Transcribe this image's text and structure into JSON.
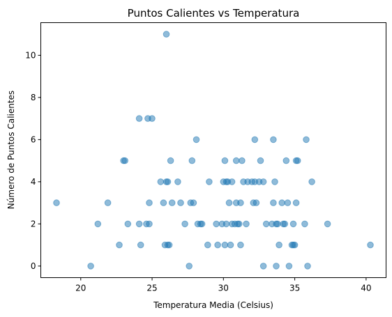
{
  "chart_data": {
    "type": "scatter",
    "title": "Puntos Calientes vs Temperatura",
    "xlabel": "Temperatura Media (Celsius)",
    "ylabel": "Número de Puntos Calientes",
    "xlim": [
      17.2,
      41.4
    ],
    "ylim": [
      -0.55,
      11.55
    ],
    "xticks": [
      20,
      25,
      30,
      35,
      40
    ],
    "yticks": [
      0,
      2,
      4,
      6,
      8,
      10
    ],
    "grid": false,
    "marker_color": "#1f77b4",
    "marker_alpha": 0.5,
    "points": [
      {
        "x": 18.3,
        "y": 3
      },
      {
        "x": 20.7,
        "y": 0
      },
      {
        "x": 21.2,
        "y": 2
      },
      {
        "x": 21.9,
        "y": 3
      },
      {
        "x": 22.7,
        "y": 1
      },
      {
        "x": 23.0,
        "y": 5
      },
      {
        "x": 23.1,
        "y": 5
      },
      {
        "x": 23.3,
        "y": 2
      },
      {
        "x": 24.1,
        "y": 7
      },
      {
        "x": 24.1,
        "y": 2
      },
      {
        "x": 24.2,
        "y": 1
      },
      {
        "x": 24.6,
        "y": 2
      },
      {
        "x": 24.7,
        "y": 7
      },
      {
        "x": 24.8,
        "y": 2
      },
      {
        "x": 24.8,
        "y": 3
      },
      {
        "x": 25.0,
        "y": 7
      },
      {
        "x": 25.6,
        "y": 4
      },
      {
        "x": 25.8,
        "y": 3
      },
      {
        "x": 25.9,
        "y": 1
      },
      {
        "x": 26.0,
        "y": 4
      },
      {
        "x": 26.0,
        "y": 11
      },
      {
        "x": 26.1,
        "y": 4
      },
      {
        "x": 26.1,
        "y": 1
      },
      {
        "x": 26.2,
        "y": 1
      },
      {
        "x": 26.3,
        "y": 5
      },
      {
        "x": 26.4,
        "y": 3
      },
      {
        "x": 26.8,
        "y": 4
      },
      {
        "x": 27.0,
        "y": 3
      },
      {
        "x": 27.3,
        "y": 2
      },
      {
        "x": 27.6,
        "y": 0
      },
      {
        "x": 27.7,
        "y": 3
      },
      {
        "x": 27.8,
        "y": 5
      },
      {
        "x": 27.9,
        "y": 3
      },
      {
        "x": 28.1,
        "y": 6
      },
      {
        "x": 28.2,
        "y": 2
      },
      {
        "x": 28.4,
        "y": 2
      },
      {
        "x": 28.5,
        "y": 2
      },
      {
        "x": 28.9,
        "y": 1
      },
      {
        "x": 29.0,
        "y": 4
      },
      {
        "x": 29.5,
        "y": 2
      },
      {
        "x": 29.6,
        "y": 1
      },
      {
        "x": 29.9,
        "y": 2
      },
      {
        "x": 30.0,
        "y": 4
      },
      {
        "x": 30.1,
        "y": 5
      },
      {
        "x": 30.1,
        "y": 1
      },
      {
        "x": 30.2,
        "y": 2
      },
      {
        "x": 30.2,
        "y": 4
      },
      {
        "x": 30.3,
        "y": 4
      },
      {
        "x": 30.4,
        "y": 3
      },
      {
        "x": 30.5,
        "y": 1
      },
      {
        "x": 30.6,
        "y": 2
      },
      {
        "x": 30.6,
        "y": 4
      },
      {
        "x": 30.8,
        "y": 2
      },
      {
        "x": 30.9,
        "y": 3
      },
      {
        "x": 30.9,
        "y": 5
      },
      {
        "x": 31.0,
        "y": 2
      },
      {
        "x": 31.1,
        "y": 2
      },
      {
        "x": 31.2,
        "y": 3
      },
      {
        "x": 31.2,
        "y": 1
      },
      {
        "x": 31.3,
        "y": 5
      },
      {
        "x": 31.4,
        "y": 4
      },
      {
        "x": 31.6,
        "y": 2
      },
      {
        "x": 31.7,
        "y": 4
      },
      {
        "x": 32.0,
        "y": 4
      },
      {
        "x": 32.1,
        "y": 3
      },
      {
        "x": 32.2,
        "y": 6
      },
      {
        "x": 32.2,
        "y": 4
      },
      {
        "x": 32.3,
        "y": 3
      },
      {
        "x": 32.5,
        "y": 4
      },
      {
        "x": 32.6,
        "y": 5
      },
      {
        "x": 32.8,
        "y": 0
      },
      {
        "x": 32.8,
        "y": 4
      },
      {
        "x": 33.0,
        "y": 2
      },
      {
        "x": 33.4,
        "y": 2
      },
      {
        "x": 33.5,
        "y": 3
      },
      {
        "x": 33.5,
        "y": 6
      },
      {
        "x": 33.6,
        "y": 4
      },
      {
        "x": 33.7,
        "y": 2
      },
      {
        "x": 33.7,
        "y": 0
      },
      {
        "x": 33.8,
        "y": 2
      },
      {
        "x": 33.9,
        "y": 1
      },
      {
        "x": 34.1,
        "y": 3
      },
      {
        "x": 34.2,
        "y": 2
      },
      {
        "x": 34.3,
        "y": 2
      },
      {
        "x": 34.4,
        "y": 5
      },
      {
        "x": 34.5,
        "y": 3
      },
      {
        "x": 34.6,
        "y": 0
      },
      {
        "x": 34.8,
        "y": 1
      },
      {
        "x": 34.9,
        "y": 1
      },
      {
        "x": 34.9,
        "y": 2
      },
      {
        "x": 35.0,
        "y": 1
      },
      {
        "x": 35.1,
        "y": 5
      },
      {
        "x": 35.1,
        "y": 3
      },
      {
        "x": 35.2,
        "y": 5
      },
      {
        "x": 35.7,
        "y": 2
      },
      {
        "x": 35.8,
        "y": 6
      },
      {
        "x": 35.9,
        "y": 0
      },
      {
        "x": 36.2,
        "y": 4
      },
      {
        "x": 37.3,
        "y": 2
      },
      {
        "x": 40.3,
        "y": 1
      }
    ]
  }
}
